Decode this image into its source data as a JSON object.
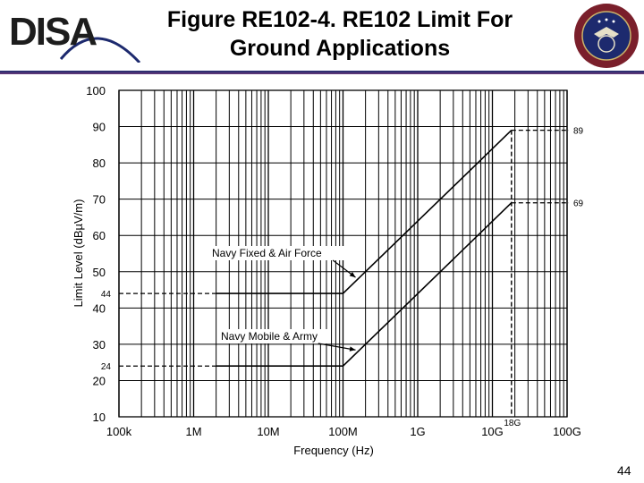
{
  "header": {
    "logo_text": "DISA",
    "title_line1": "Figure RE102-4. RE102 Limit For",
    "title_line2": "Ground Applications",
    "seal_icon": "defense-agency-seal",
    "divider_color": "#1d2a6e"
  },
  "slide_number": "44",
  "chart_data": {
    "type": "line",
    "title": "",
    "xlabel": "Frequency (Hz)",
    "ylabel": "Limit Level (dBµV/m)",
    "xscale": "log",
    "xlim": [
      100000,
      100000000000
    ],
    "ylim": [
      10,
      100
    ],
    "xticks": [
      {
        "value": 100000,
        "label": "100k"
      },
      {
        "value": 1000000,
        "label": "1M"
      },
      {
        "value": 10000000,
        "label": "10M"
      },
      {
        "value": 100000000,
        "label": "100M"
      },
      {
        "value": 1000000000,
        "label": "1G"
      },
      {
        "value": 10000000000,
        "label": "10G"
      },
      {
        "value": 100000000000,
        "label": "100G"
      }
    ],
    "yticks": [
      10,
      20,
      30,
      40,
      50,
      60,
      70,
      80,
      90,
      100
    ],
    "grid": true,
    "series": [
      {
        "name": "Navy Fixed & Air Force",
        "x": [
          2000000,
          100000000,
          18000000000
        ],
        "y": [
          44,
          44,
          89
        ]
      },
      {
        "name": "Navy Mobile & Army",
        "x": [
          2000000,
          100000000,
          18000000000
        ],
        "y": [
          24,
          24,
          69
        ]
      }
    ],
    "annotations": {
      "level_labels": [
        {
          "text": "44",
          "y": 44
        },
        {
          "text": "24",
          "y": 24
        },
        {
          "text": "89",
          "y": 89
        },
        {
          "text": "69",
          "y": 69
        }
      ],
      "freq_marker": {
        "text": "18G",
        "x": 18000000000
      },
      "series_labels": [
        {
          "text": "Navy Fixed & Air Force",
          "target_x": 100000000,
          "target_y": 44
        },
        {
          "text": "Navy Mobile & Army",
          "target_x": 100000000,
          "target_y": 24
        }
      ]
    }
  }
}
